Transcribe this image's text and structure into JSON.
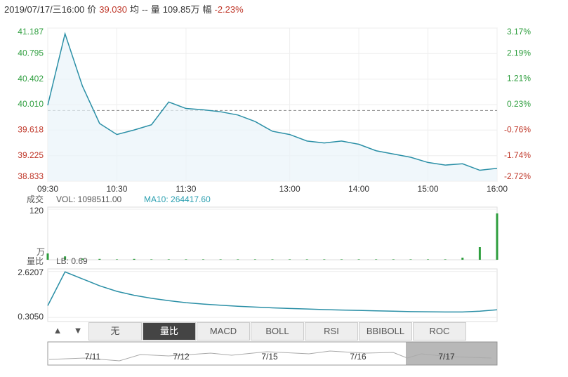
{
  "header": {
    "datetime": "2019/07/17/三16:00",
    "price_label": "价",
    "price": "39.030",
    "avg_label": "均",
    "avg": "--",
    "volume_label": "量",
    "volume": "109.85万",
    "change_label": "幅",
    "change": "-2.23%"
  },
  "chart_data": [
    {
      "type": "line",
      "color": "#2a8fa6",
      "up_color": "#2e9e3e",
      "down_color": "#c0392b",
      "reference_line": 39.92,
      "x": [
        "09:30",
        "09:45",
        "10:00",
        "10:15",
        "10:30",
        "10:45",
        "11:00",
        "11:15",
        "11:30",
        "11:45",
        "12:00",
        "12:15",
        "12:30",
        "12:45",
        "13:00",
        "13:15",
        "13:30",
        "13:45",
        "14:00",
        "14:15",
        "14:30",
        "14:45",
        "15:00",
        "15:15",
        "15:30",
        "15:45",
        "16:00"
      ],
      "xlim": [
        "09:30",
        "16:00"
      ],
      "xticks": [
        "09:30",
        "10:30",
        "11:30",
        "13:00",
        "14:00",
        "15:00",
        "16:00"
      ],
      "series": [
        {
          "values": [
            40.0,
            41.1,
            40.3,
            39.72,
            39.55,
            39.62,
            39.7,
            40.05,
            39.95,
            39.93,
            39.9,
            39.85,
            39.75,
            39.6,
            39.55,
            39.45,
            39.42,
            39.45,
            39.4,
            39.3,
            39.25,
            39.2,
            39.12,
            39.08,
            39.1,
            39.0,
            39.03
          ]
        }
      ],
      "ylim": [
        38.833,
        41.187
      ],
      "yticks": [
        41.187,
        40.795,
        40.402,
        {
          "value": 40.01,
          "label": "40.010"
        },
        39.618,
        39.225,
        38.833
      ],
      "y2lim": [
        -2.72,
        3.17
      ],
      "y2ticks": [
        {
          "value": 3.17,
          "label": "3.17%"
        },
        {
          "value": 2.19,
          "label": "2.19%"
        },
        {
          "value": 1.21,
          "label": "1.21%"
        },
        {
          "value": 0.23,
          "label": "0.23%"
        },
        {
          "value": -0.76,
          "label": "-0.76%"
        },
        {
          "value": -1.74,
          "label": "-1.74%"
        },
        {
          "value": -2.72,
          "label": "-2.72%"
        }
      ]
    },
    {
      "type": "bar",
      "label": "成交",
      "vol": "VOL: 1098511.00",
      "ma": "MA10: 264417.60",
      "unit": "万",
      "color": "#2e9e3e",
      "x": [
        "09:30",
        "09:45",
        "10:00",
        "10:15",
        "10:30",
        "10:45",
        "11:00",
        "11:15",
        "11:30",
        "11:45",
        "12:00",
        "12:15",
        "12:30",
        "12:45",
        "13:00",
        "13:15",
        "13:30",
        "13:45",
        "14:00",
        "14:15",
        "14:30",
        "14:45",
        "15:00",
        "15:15",
        "15:30",
        "15:45",
        "16:00"
      ],
      "xlim": [
        "09:30",
        "16:00"
      ],
      "series": [
        {
          "values": [
            15,
            8,
            3,
            2,
            1,
            2,
            1,
            1,
            1,
            1,
            1,
            1,
            1,
            1,
            1,
            1,
            1,
            1,
            1,
            1,
            1,
            1,
            1,
            1,
            5,
            30,
            110
          ]
        }
      ],
      "ylim": [
        0,
        125
      ],
      "yticks": [
        120
      ]
    },
    {
      "type": "line",
      "label": "量比",
      "lb": "LB: 0.69",
      "color": "#2a8fa6",
      "x": [
        "09:30",
        "09:45",
        "10:00",
        "10:15",
        "10:30",
        "10:45",
        "11:00",
        "11:15",
        "11:30",
        "11:45",
        "12:00",
        "12:15",
        "12:30",
        "12:45",
        "13:00",
        "13:15",
        "13:30",
        "13:45",
        "14:00",
        "14:15",
        "14:30",
        "14:45",
        "15:00",
        "15:15",
        "15:30",
        "15:45",
        "16:00"
      ],
      "xlim": [
        "09:30",
        "16:00"
      ],
      "series": [
        {
          "values": [
            0.9,
            2.6,
            2.25,
            1.9,
            1.62,
            1.42,
            1.27,
            1.15,
            1.05,
            0.98,
            0.92,
            0.87,
            0.83,
            0.79,
            0.76,
            0.73,
            0.7,
            0.68,
            0.66,
            0.64,
            0.62,
            0.6,
            0.59,
            0.58,
            0.58,
            0.62,
            0.69
          ]
        }
      ],
      "ylim": [
        0.1,
        2.75
      ],
      "yticks": [
        2.6207,
        {
          "value": 0.305,
          "label": "0.3050"
        }
      ]
    }
  ],
  "toolbar": {
    "buttons": [
      "▲",
      "▼"
    ],
    "tabs": [
      "无",
      "量比",
      "MACD",
      "BOLL",
      "RSI",
      "BBIBOLL",
      "ROC"
    ],
    "active": 1
  },
  "navigator": {
    "dates": [
      "7/11",
      "7/12",
      "7/15",
      "7/16",
      "7/17"
    ]
  }
}
